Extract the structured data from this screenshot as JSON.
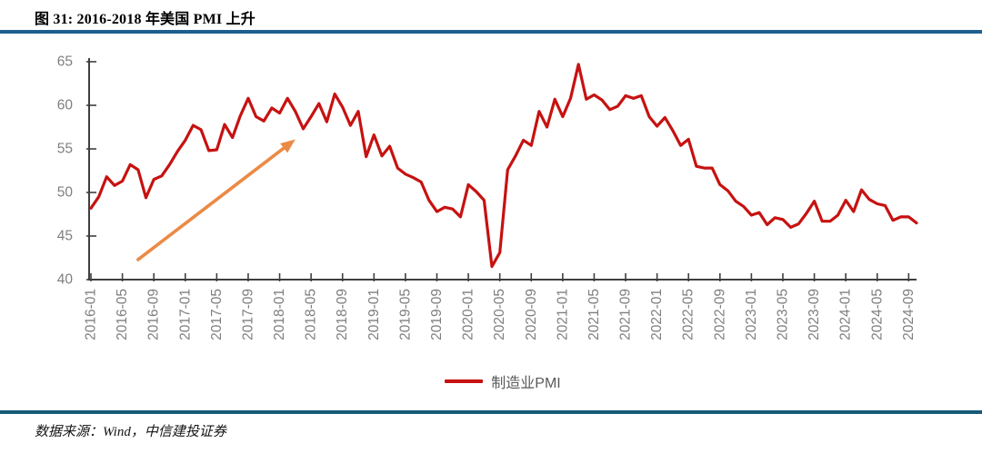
{
  "header": {
    "title": "图 31: 2016-2018 年美国 PMI 上升"
  },
  "colors": {
    "rule_top": "#1d6090",
    "rule_bottom": "#175a77",
    "line": "#c61210",
    "arrow": "#eb8a45",
    "axis": "#3f3f3f",
    "tick_label": "#7f7f7f",
    "legend_text": "#595959"
  },
  "legend": {
    "label": "制造业PMI"
  },
  "footer": {
    "source": "数据来源：Wind，中信建投证券"
  },
  "chart_data": {
    "type": "line",
    "title": "图 31: 2016-2018 年美国 PMI 上升",
    "xlabel": "",
    "ylabel": "",
    "ylim": [
      40,
      65
    ],
    "yticks": [
      40,
      45,
      50,
      55,
      60,
      65
    ],
    "grid": false,
    "legend_position": "bottom-center",
    "xtick_labels": [
      "2016-01",
      "2016-05",
      "2016-09",
      "2017-01",
      "2017-05",
      "2017-09",
      "2018-01",
      "2018-05",
      "2018-09",
      "2019-01",
      "2019-05",
      "2019-09",
      "2020-01",
      "2020-05",
      "2020-09",
      "2021-01",
      "2021-05",
      "2021-09",
      "2022-01",
      "2022-05",
      "2022-09",
      "2023-01",
      "2023-05",
      "2023-09",
      "2024-01",
      "2024-05",
      "2024-09"
    ],
    "xtick_every_n_points": 4,
    "x": [
      "2016-01",
      "2016-02",
      "2016-03",
      "2016-04",
      "2016-05",
      "2016-06",
      "2016-07",
      "2016-08",
      "2016-09",
      "2016-10",
      "2016-11",
      "2016-12",
      "2017-01",
      "2017-02",
      "2017-03",
      "2017-04",
      "2017-05",
      "2017-06",
      "2017-07",
      "2017-08",
      "2017-09",
      "2017-10",
      "2017-11",
      "2017-12",
      "2018-01",
      "2018-02",
      "2018-03",
      "2018-04",
      "2018-05",
      "2018-06",
      "2018-07",
      "2018-08",
      "2018-09",
      "2018-10",
      "2018-11",
      "2018-12",
      "2019-01",
      "2019-02",
      "2019-03",
      "2019-04",
      "2019-05",
      "2019-06",
      "2019-07",
      "2019-08",
      "2019-09",
      "2019-10",
      "2019-11",
      "2019-12",
      "2020-01",
      "2020-02",
      "2020-03",
      "2020-04",
      "2020-05",
      "2020-06",
      "2020-07",
      "2020-08",
      "2020-09",
      "2020-10",
      "2020-11",
      "2020-12",
      "2021-01",
      "2021-02",
      "2021-03",
      "2021-04",
      "2021-05",
      "2021-06",
      "2021-07",
      "2021-08",
      "2021-09",
      "2021-10",
      "2021-11",
      "2021-12",
      "2022-01",
      "2022-02",
      "2022-03",
      "2022-04",
      "2022-05",
      "2022-06",
      "2022-07",
      "2022-08",
      "2022-09",
      "2022-10",
      "2022-11",
      "2022-12",
      "2023-01",
      "2023-02",
      "2023-03",
      "2023-04",
      "2023-05",
      "2023-06",
      "2023-07",
      "2023-08",
      "2023-09",
      "2023-10",
      "2023-11",
      "2023-12",
      "2024-01",
      "2024-02",
      "2024-03",
      "2024-04",
      "2024-05",
      "2024-06",
      "2024-07",
      "2024-08",
      "2024-09",
      "2024-10"
    ],
    "series": [
      {
        "name": "制造业PMI",
        "color": "#c61210",
        "values": [
          48.2,
          49.5,
          51.8,
          50.8,
          51.3,
          53.2,
          52.6,
          49.4,
          51.5,
          51.9,
          53.2,
          54.7,
          56.0,
          57.7,
          57.2,
          54.8,
          54.9,
          57.8,
          56.3,
          58.8,
          60.8,
          58.7,
          58.2,
          59.7,
          59.1,
          60.8,
          59.3,
          57.3,
          58.7,
          60.2,
          58.1,
          61.3,
          59.8,
          57.7,
          59.3,
          54.1,
          56.6,
          54.2,
          55.3,
          52.8,
          52.1,
          51.7,
          51.2,
          49.1,
          47.8,
          48.3,
          48.1,
          47.2,
          50.9,
          50.1,
          49.1,
          41.5,
          43.1,
          52.6,
          54.2,
          56.0,
          55.4,
          59.3,
          57.5,
          60.7,
          58.7,
          60.8,
          64.7,
          60.7,
          61.2,
          60.6,
          59.5,
          59.9,
          61.1,
          60.8,
          61.1,
          58.7,
          57.6,
          58.6,
          57.1,
          55.4,
          56.1,
          53.0,
          52.8,
          52.8,
          50.9,
          50.2,
          49.0,
          48.4,
          47.4,
          47.7,
          46.3,
          47.1,
          46.9,
          46.0,
          46.4,
          47.6,
          49.0,
          46.7,
          46.7,
          47.4,
          49.1,
          47.8,
          50.3,
          49.2,
          48.7,
          48.5,
          46.8,
          47.2,
          47.2,
          46.5
        ]
      }
    ],
    "annotation": {
      "type": "arrow",
      "color": "#eb8a45",
      "from": {
        "month": "2016-07",
        "value": 42.3
      },
      "to": {
        "month": "2018-03",
        "value": 56.1
      }
    }
  }
}
